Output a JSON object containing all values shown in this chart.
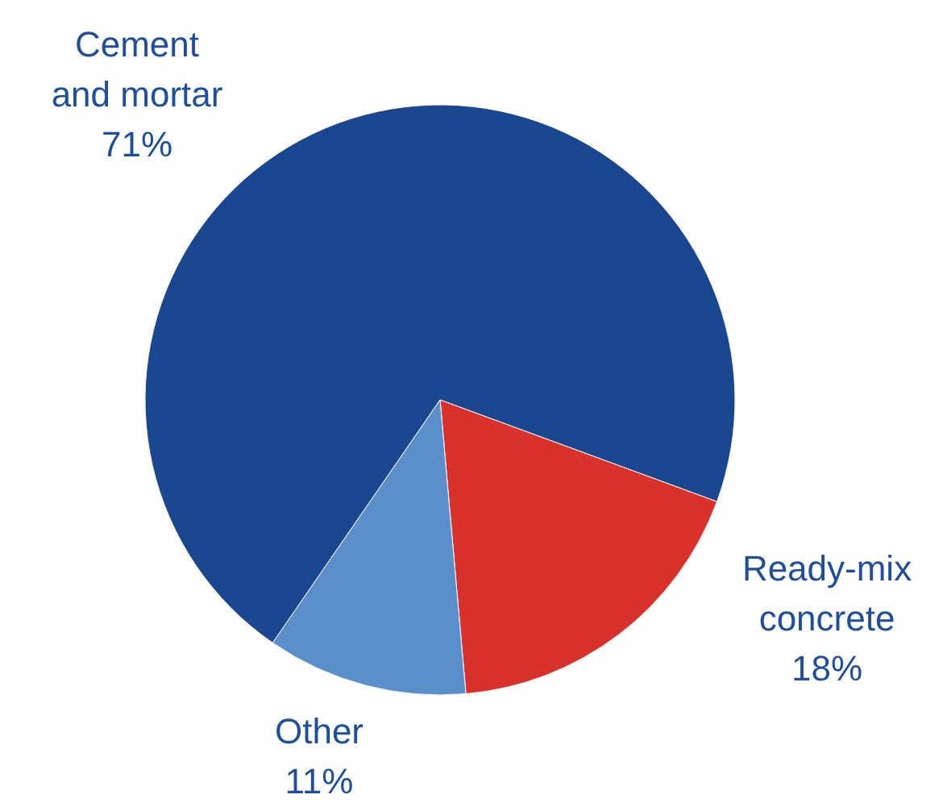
{
  "chart_data": {
    "type": "pie",
    "categories": [
      "Cement and mortar",
      "Ready-mix concrete",
      "Other"
    ],
    "values": [
      71,
      18,
      11
    ],
    "colors": [
      "#1a4790",
      "#d9312b",
      "#5b8fcb"
    ],
    "value_labels": [
      "71%",
      "18%",
      "11%"
    ]
  }
}
